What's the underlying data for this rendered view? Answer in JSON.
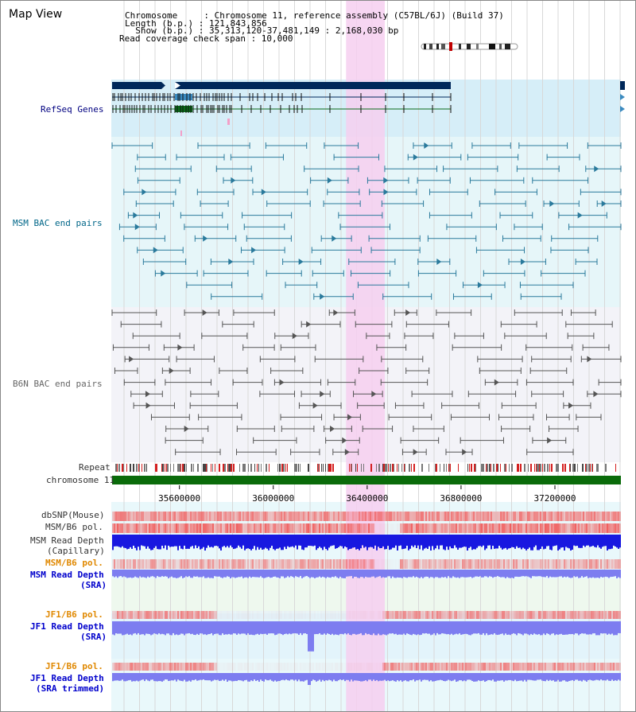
{
  "header": {
    "title": "Map View",
    "chromosome_line": "Chromosome     : Chromosome 11, reference assembly (C57BL/6J) (Build 37)",
    "length_line": "Length (b.p.) : 121,843,856",
    "show_line": "  Show (b.p.) : 35,313,120-37,481,149 : 2,168,030 bp",
    "coverage_line": "Read coverage check span : 10,000"
  },
  "tracks": {
    "refseq": "RefSeq Genes",
    "msm_bac": "MSM BAC end pairs",
    "b6n_bac": "B6N BAC end pairs",
    "repeat": "Repeat",
    "chromosome": "chromosome 11",
    "dbsnp": "dbSNP(Mouse)",
    "msm_b6_pol": "MSM/B6 pol.",
    "msm_depth_cap_1": "MSM Read Depth",
    "msm_depth_cap_2": "(Capillary)",
    "msm_b6_pol_2": "MSM/B6 pol.",
    "msm_depth_sra_1": "MSM Read Depth",
    "msm_depth_sra_2": "(SRA)",
    "jf1_b6_pol": "JF1/B6 pol.",
    "jf1_depth_sra_1": "JF1 Read Depth",
    "jf1_depth_sra_2": "(SRA)",
    "jf1_b6_pol_2": "JF1/B6 pol.",
    "jf1_depth_trim_1": "JF1 Read Depth",
    "jf1_depth_trim_2": "(SRA trimmed)"
  },
  "axis": {
    "ticks": [
      "35600000",
      "36000000",
      "36400000",
      "36800000",
      "37200000"
    ],
    "start": 35313120,
    "end": 37481149
  },
  "highlight": {
    "start": 36310000,
    "end": 36475000
  },
  "colors": {
    "refseq_dark": "#00285a",
    "refseq_light": "#3a8abf",
    "refseq_green": "#0a6b1a",
    "msm_line": "#2a7a9c",
    "b6n_line": "#555555",
    "chromosome": "#0a6b0a",
    "highlight": "#f6cff0",
    "depth_blue": "#1818e0",
    "depth_light": "#7d7df0",
    "pol_red": "#f06060"
  }
}
